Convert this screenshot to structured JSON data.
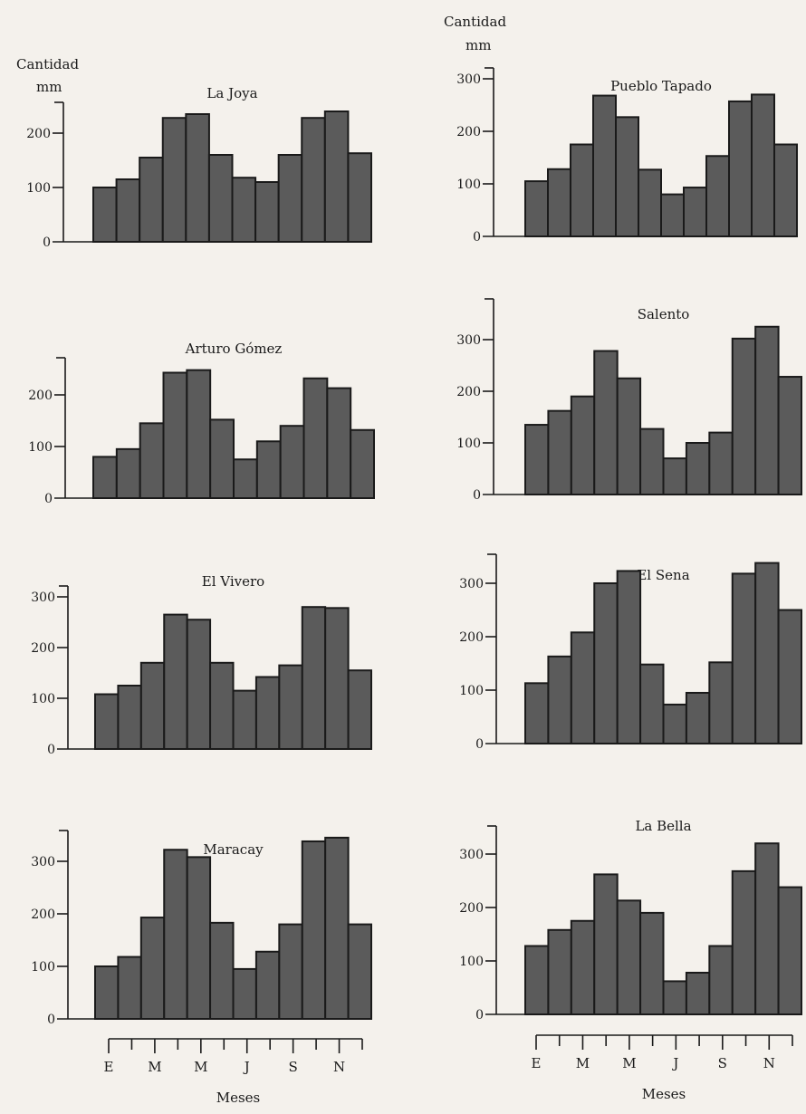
{
  "labels": {
    "cantidad": "Cantidad",
    "mm": "mm",
    "meses": "Meses",
    "month_ticks": [
      "E",
      "M",
      "M",
      "J",
      "S",
      "N"
    ]
  },
  "colors": {
    "bar": "#5b5b5b",
    "ink": "#1a1a1a"
  },
  "chart_data": [
    {
      "type": "bar",
      "title": "La Joya",
      "categories": [
        "1",
        "2",
        "3",
        "4",
        "5",
        "6",
        "7",
        "8",
        "9",
        "10",
        "11",
        "12"
      ],
      "values": [
        100,
        115,
        155,
        228,
        235,
        160,
        118,
        110,
        160,
        228,
        240,
        163
      ],
      "ylabel": "Cantidad mm",
      "yticks": [
        "0",
        "100",
        "200"
      ],
      "ytick_values": [
        0,
        100,
        200
      ],
      "ylim": [
        0,
        250
      ]
    },
    {
      "type": "bar",
      "title": "Pueblo Tapado",
      "categories": [
        "1",
        "2",
        "3",
        "4",
        "5",
        "6",
        "7",
        "8",
        "9",
        "10",
        "11",
        "12"
      ],
      "values": [
        105,
        128,
        175,
        268,
        227,
        127,
        80,
        93,
        153,
        257,
        270,
        175
      ],
      "ylabel": "Cantidad mm",
      "yticks": [
        "0",
        "100",
        "200",
        "300"
      ],
      "ytick_values": [
        0,
        100,
        200,
        300
      ],
      "ylim": [
        0,
        300
      ]
    },
    {
      "type": "bar",
      "title": "Arturo Gómez",
      "categories": [
        "1",
        "2",
        "3",
        "4",
        "5",
        "6",
        "7",
        "8",
        "9",
        "10",
        "11",
        "12"
      ],
      "values": [
        80,
        95,
        145,
        243,
        248,
        152,
        75,
        110,
        140,
        232,
        213,
        132
      ],
      "yticks": [
        "0",
        "100",
        "200"
      ],
      "ytick_values": [
        0,
        100,
        200
      ],
      "ylim": [
        0,
        270
      ]
    },
    {
      "type": "bar",
      "title": "Salento",
      "categories": [
        "1",
        "2",
        "3",
        "4",
        "5",
        "6",
        "7",
        "8",
        "9",
        "10",
        "11",
        "12"
      ],
      "values": [
        135,
        162,
        190,
        278,
        225,
        127,
        70,
        100,
        120,
        302,
        325,
        228
      ],
      "yticks": [
        "0",
        "100",
        "200",
        "300"
      ],
      "ytick_values": [
        0,
        100,
        200,
        300
      ],
      "ylim": [
        0,
        370
      ]
    },
    {
      "type": "bar",
      "title": "El Vivero",
      "categories": [
        "1",
        "2",
        "3",
        "4",
        "5",
        "6",
        "7",
        "8",
        "9",
        "10",
        "11",
        "12"
      ],
      "values": [
        108,
        125,
        170,
        265,
        255,
        170,
        115,
        142,
        165,
        280,
        278,
        155
      ],
      "yticks": [
        "0",
        "100",
        "200",
        "300"
      ],
      "ytick_values": [
        0,
        100,
        200,
        300
      ],
      "ylim": [
        0,
        315
      ]
    },
    {
      "type": "bar",
      "title": "El Sena",
      "categories": [
        "1",
        "2",
        "3",
        "4",
        "5",
        "6",
        "7",
        "8",
        "9",
        "10",
        "11",
        "12"
      ],
      "values": [
        113,
        163,
        208,
        300,
        323,
        148,
        73,
        95,
        152,
        318,
        338,
        250
      ],
      "yticks": [
        "0",
        "100",
        "200",
        "300"
      ],
      "ytick_values": [
        0,
        100,
        200,
        300
      ],
      "ylim": [
        0,
        360
      ]
    },
    {
      "type": "bar",
      "title": "Maracay",
      "categories": [
        "1",
        "2",
        "3",
        "4",
        "5",
        "6",
        "7",
        "8",
        "9",
        "10",
        "11",
        "12"
      ],
      "values": [
        100,
        118,
        193,
        322,
        308,
        183,
        95,
        128,
        180,
        338,
        345,
        180
      ],
      "xlabel": "Meses",
      "yticks": [
        "0",
        "100",
        "200",
        "300"
      ],
      "ytick_values": [
        0,
        100,
        200,
        300
      ],
      "ylim": [
        0,
        355
      ]
    },
    {
      "type": "bar",
      "title": "La Bella",
      "categories": [
        "1",
        "2",
        "3",
        "4",
        "5",
        "6",
        "7",
        "8",
        "9",
        "10",
        "11",
        "12"
      ],
      "values": [
        128,
        158,
        175,
        262,
        213,
        190,
        62,
        78,
        128,
        268,
        320,
        238
      ],
      "xlabel": "Meses",
      "yticks": [
        "0",
        "100",
        "200",
        "300"
      ],
      "ytick_values": [
        0,
        100,
        200,
        300
      ],
      "ylim": [
        0,
        360
      ]
    }
  ]
}
